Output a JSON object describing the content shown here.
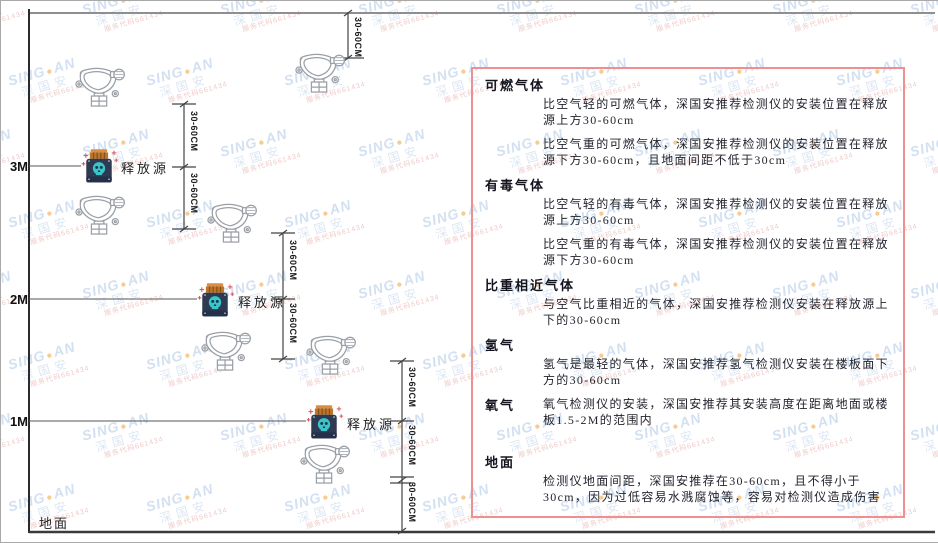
{
  "diagram": {
    "axis_3m": "3M",
    "axis_2m": "2M",
    "axis_1m": "1M",
    "ground": "地面",
    "release_source": "释放源",
    "dim": "30-60CM"
  },
  "panel": {
    "border_color": "#ef8f8f",
    "sections": [
      {
        "title": "可燃气体",
        "paras": [
          "比空气轻的可燃气体，深国安推荐检测仪的安装位置在释放源上方30-60cm",
          "比空气重的可燃气体，深国安推荐检测仪的安装位置在释放源下方30-60cm，且地面间距不低于30cm"
        ]
      },
      {
        "title": "有毒气体",
        "paras": [
          "比空气轻的有毒气体，深国安推荐检测仪的安装位置在释放源上方30-60cm",
          "比空气重的有毒气体，深国安推荐检测仪的安装位置在释放源下方30-60cm"
        ]
      },
      {
        "title": "比重相近气体",
        "paras": [
          "与空气比重相近的气体，深国安推荐检测仪安装在释放源上下的30-60cm"
        ]
      },
      {
        "title": "氢气",
        "paras": [
          "氢气是最轻的气体，深国安推荐氢气检测仪安装在楼板面下方的30-60cm"
        ]
      },
      {
        "title": "氧气",
        "paras": [
          "氧气检测仪的安装，深国安推荐其安装高度在距离地面或楼板1.5-2M的范围内"
        ]
      },
      {
        "title": "地面",
        "paras": [
          "检测仪地面间距，深国安推荐在30-60cm，且不得小于30cm，因为过低容易水溅腐蚀等，容易对检测仪造成伤害"
        ]
      }
    ]
  },
  "watermark": {
    "brand_pre": "SING",
    "brand_post": "AN",
    "dot": "●",
    "company": "深国安",
    "code_line": "服务代码661434",
    "colors": {
      "blue": "#aec8e6",
      "orange": "#f2a33c",
      "red": "#e39c9c"
    }
  },
  "icon_colors": {
    "source_body": "#2d3a51",
    "source_cap": "#bf7429",
    "source_skull": "#3ac5c9",
    "spark_red": "#e05a5a",
    "detector_line": "#9a9fa6"
  }
}
